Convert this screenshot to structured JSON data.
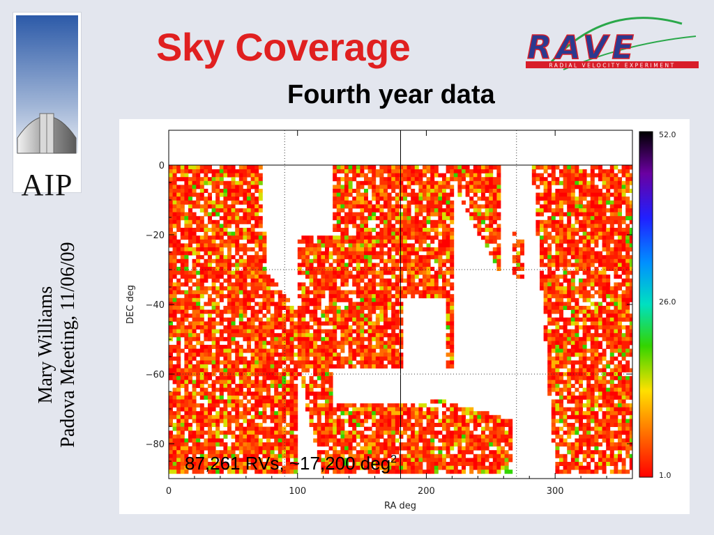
{
  "slide": {
    "title": "Sky Coverage",
    "subtitle": "Fourth year data",
    "author_line": "Mary Williams",
    "meeting_line": "Padova Meeting, 11/06/09",
    "aip_logo_text": "AIP",
    "rave_logo_text": "RAVE",
    "rave_logo_subtext": "RADIAL VELOCITY EXPERIMENT"
  },
  "colors": {
    "title": "#e02020",
    "background": "#e3e6ee",
    "rave_blue": "#2b3a8f",
    "rave_red": "#d81e2a"
  },
  "chart_data": {
    "type": "heatmap",
    "title": "",
    "xlabel": "RA deg",
    "ylabel": "DEC deg",
    "xlim": [
      0,
      360
    ],
    "ylim": [
      -90,
      10
    ],
    "xticks": [
      "0",
      "100",
      "200",
      "300"
    ],
    "yticks": [
      "0",
      "-20",
      "-40",
      "-60",
      "-80"
    ],
    "grid": "dotted at RA 90, 270 and DEC -30, -60; solid at RA 180 and DEC 0",
    "annotation": "87,261 RVs, ~17,200 deg",
    "annotation_sup": "2",
    "colorbar": {
      "min_label": "1.0",
      "mid_label": "26.0",
      "max_label": "52.0",
      "colormap": "red-yellow-green-cyan-blue-purple-black"
    },
    "coverage_regions": [
      {
        "name": "west",
        "ra": [
          0,
          100
        ],
        "dec": [
          -90,
          0
        ]
      },
      {
        "name": "central",
        "ra": [
          125,
          255
        ],
        "dec": [
          -58,
          0
        ]
      },
      {
        "name": "south-central",
        "ra": [
          75,
          265
        ],
        "dec": [
          -90,
          -62
        ]
      },
      {
        "name": "east",
        "ra": [
          285,
          360
        ],
        "dec": [
          -90,
          0
        ]
      },
      {
        "name": "patch-270",
        "ra": [
          265,
          275
        ],
        "dec": [
          -32,
          -18
        ]
      }
    ]
  }
}
